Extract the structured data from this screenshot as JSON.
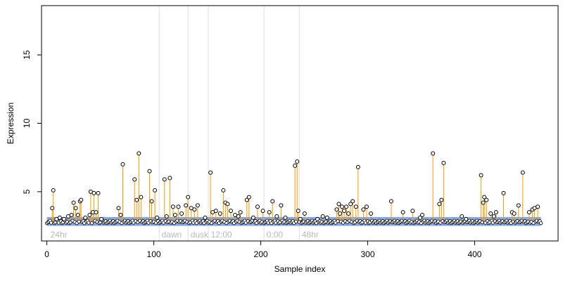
{
  "chart_data": {
    "type": "scatter",
    "title": "",
    "xlabel": "Sample index",
    "ylabel": "Expression",
    "xlim": [
      -5,
      478
    ],
    "ylim": [
      1.4,
      18.6
    ],
    "xticks": [
      0,
      100,
      200,
      300,
      400
    ],
    "xtick_labels": [
      "0",
      "100",
      "200",
      "300",
      "400"
    ],
    "yticks": [
      5,
      10,
      15
    ],
    "ytick_labels": [
      "5",
      "10",
      "15"
    ],
    "baseline": 2.7,
    "band": {
      "low": 2.5,
      "high": 3.15,
      "from": 0,
      "to": 462
    },
    "grid": false,
    "annotations": [
      {
        "label": "24hr",
        "x": 2
      },
      {
        "label": "dawn",
        "x": 106,
        "line_x": 105
      },
      {
        "label": "dusk",
        "x": 133,
        "line_x": 132
      },
      {
        "label": "12:00",
        "x": 152,
        "line_x": 151
      },
      {
        "label": "0:00",
        "x": 204,
        "line_x": 203
      },
      {
        "label": "48hr",
        "x": 237,
        "line_x": 236
      }
    ],
    "colors": {
      "stem": "#ff9900",
      "band": "#7b9fdf",
      "marker_fill": "#ffffff",
      "marker_edge": "#000000",
      "divider": "#dddddd",
      "annotation_text": "#b8b8b8"
    },
    "highlighted_points": [
      {
        "x": 5,
        "y": 3.8
      },
      {
        "x": 6,
        "y": 5.1
      },
      {
        "x": 9,
        "y": 3.0
      },
      {
        "x": 12,
        "y": 3.1
      },
      {
        "x": 16,
        "y": 3.0
      },
      {
        "x": 20,
        "y": 3.2
      },
      {
        "x": 23,
        "y": 3.3
      },
      {
        "x": 25,
        "y": 4.2
      },
      {
        "x": 27,
        "y": 3.8
      },
      {
        "x": 29,
        "y": 3.3
      },
      {
        "x": 31,
        "y": 4.3
      },
      {
        "x": 32,
        "y": 4.4
      },
      {
        "x": 36,
        "y": 3.1
      },
      {
        "x": 40,
        "y": 3.3
      },
      {
        "x": 41,
        "y": 5.0
      },
      {
        "x": 43,
        "y": 3.5
      },
      {
        "x": 44,
        "y": 4.9
      },
      {
        "x": 46,
        "y": 3.5
      },
      {
        "x": 48,
        "y": 4.9
      },
      {
        "x": 51,
        "y": 3.0
      },
      {
        "x": 67,
        "y": 3.8
      },
      {
        "x": 69,
        "y": 3.3
      },
      {
        "x": 71,
        "y": 7.0
      },
      {
        "x": 82,
        "y": 5.9
      },
      {
        "x": 84,
        "y": 4.4
      },
      {
        "x": 86,
        "y": 7.8
      },
      {
        "x": 88,
        "y": 4.6
      },
      {
        "x": 96,
        "y": 6.5
      },
      {
        "x": 98,
        "y": 4.3
      },
      {
        "x": 101,
        "y": 5.1
      },
      {
        "x": 103,
        "y": 3.1
      },
      {
        "x": 110,
        "y": 5.9
      },
      {
        "x": 112,
        "y": 3.2
      },
      {
        "x": 115,
        "y": 6.0
      },
      {
        "x": 118,
        "y": 3.9
      },
      {
        "x": 120,
        "y": 3.3
      },
      {
        "x": 123,
        "y": 3.9
      },
      {
        "x": 126,
        "y": 3.4
      },
      {
        "x": 130,
        "y": 4.0
      },
      {
        "x": 132,
        "y": 4.6
      },
      {
        "x": 135,
        "y": 3.8
      },
      {
        "x": 138,
        "y": 3.7
      },
      {
        "x": 141,
        "y": 4.0
      },
      {
        "x": 148,
        "y": 3.1
      },
      {
        "x": 153,
        "y": 6.4
      },
      {
        "x": 155,
        "y": 3.5
      },
      {
        "x": 158,
        "y": 3.6
      },
      {
        "x": 162,
        "y": 3.4
      },
      {
        "x": 165,
        "y": 5.1
      },
      {
        "x": 167,
        "y": 4.2
      },
      {
        "x": 169,
        "y": 4.1
      },
      {
        "x": 172,
        "y": 3.6
      },
      {
        "x": 176,
        "y": 3.3
      },
      {
        "x": 179,
        "y": 3.2
      },
      {
        "x": 181,
        "y": 3.5
      },
      {
        "x": 187,
        "y": 4.4
      },
      {
        "x": 189,
        "y": 4.6
      },
      {
        "x": 193,
        "y": 3.1
      },
      {
        "x": 197,
        "y": 3.9
      },
      {
        "x": 202,
        "y": 3.6
      },
      {
        "x": 208,
        "y": 3.5
      },
      {
        "x": 211,
        "y": 4.3
      },
      {
        "x": 215,
        "y": 3.2
      },
      {
        "x": 219,
        "y": 4.0
      },
      {
        "x": 223,
        "y": 3.1
      },
      {
        "x": 232,
        "y": 6.9
      },
      {
        "x": 234,
        "y": 7.2
      },
      {
        "x": 235,
        "y": 3.6
      },
      {
        "x": 237,
        "y": 3.0
      },
      {
        "x": 241,
        "y": 3.4
      },
      {
        "x": 253,
        "y": 3.0
      },
      {
        "x": 258,
        "y": 3.2
      },
      {
        "x": 262,
        "y": 3.1
      },
      {
        "x": 271,
        "y": 3.7
      },
      {
        "x": 273,
        "y": 4.1
      },
      {
        "x": 274,
        "y": 3.4
      },
      {
        "x": 276,
        "y": 3.9
      },
      {
        "x": 278,
        "y": 3.6
      },
      {
        "x": 280,
        "y": 3.9
      },
      {
        "x": 282,
        "y": 3.4
      },
      {
        "x": 284,
        "y": 4.1
      },
      {
        "x": 286,
        "y": 4.3
      },
      {
        "x": 289,
        "y": 3.9
      },
      {
        "x": 291,
        "y": 6.8
      },
      {
        "x": 296,
        "y": 3.7
      },
      {
        "x": 299,
        "y": 3.9
      },
      {
        "x": 303,
        "y": 3.4
      },
      {
        "x": 322,
        "y": 4.3
      },
      {
        "x": 333,
        "y": 3.5
      },
      {
        "x": 342,
        "y": 3.6
      },
      {
        "x": 349,
        "y": 3.1
      },
      {
        "x": 351,
        "y": 3.3
      },
      {
        "x": 361,
        "y": 7.8
      },
      {
        "x": 367,
        "y": 4.1
      },
      {
        "x": 369,
        "y": 4.4
      },
      {
        "x": 371,
        "y": 7.1
      },
      {
        "x": 388,
        "y": 3.2
      },
      {
        "x": 392,
        "y": 3.0
      },
      {
        "x": 406,
        "y": 6.2
      },
      {
        "x": 408,
        "y": 4.2
      },
      {
        "x": 409,
        "y": 4.6
      },
      {
        "x": 411,
        "y": 4.4
      },
      {
        "x": 415,
        "y": 3.4
      },
      {
        "x": 418,
        "y": 3.2
      },
      {
        "x": 420,
        "y": 3.5
      },
      {
        "x": 427,
        "y": 4.9
      },
      {
        "x": 435,
        "y": 3.5
      },
      {
        "x": 437,
        "y": 3.4
      },
      {
        "x": 441,
        "y": 4.0
      },
      {
        "x": 445,
        "y": 6.4
      },
      {
        "x": 451,
        "y": 3.5
      },
      {
        "x": 454,
        "y": 3.7
      },
      {
        "x": 456,
        "y": 3.8
      },
      {
        "x": 459,
        "y": 3.9
      }
    ]
  }
}
